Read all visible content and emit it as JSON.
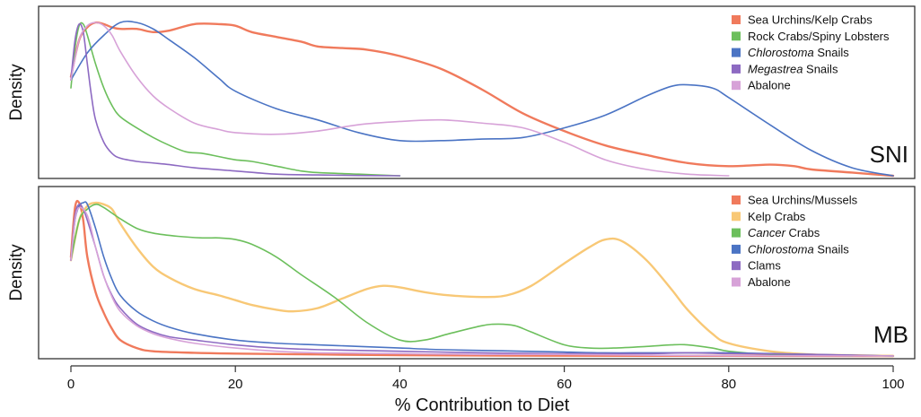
{
  "chart_data": {
    "type": "line",
    "xlabel": "% Contribution to Diet",
    "xlim": [
      0,
      100
    ],
    "xticks": [
      0,
      20,
      40,
      60,
      80,
      100
    ],
    "grid": false,
    "legend_position": "top-right",
    "panels": [
      {
        "tag": "SNI",
        "ylabel": "Density",
        "ylim": [
          0,
          1
        ],
        "series": [
          {
            "name": "Sea Urchins/Kelp Crabs",
            "color": "#f07a5c",
            "x": [
              0,
              1,
              2,
              3,
              4,
              5,
              6,
              8,
              10,
              12,
              15,
              18,
              20,
              22,
              25,
              28,
              30,
              33,
              36,
              40,
              45,
              50,
              55,
              60,
              65,
              70,
              75,
              80,
              85,
              88,
              90,
              95,
              100
            ],
            "y": [
              0.62,
              0.85,
              0.93,
              0.96,
              0.95,
              0.93,
              0.92,
              0.92,
              0.9,
              0.91,
              0.95,
              0.95,
              0.94,
              0.9,
              0.87,
              0.84,
              0.81,
              0.8,
              0.79,
              0.75,
              0.67,
              0.54,
              0.39,
              0.28,
              0.19,
              0.13,
              0.08,
              0.06,
              0.07,
              0.06,
              0.04,
              0.02,
              0.0
            ]
          },
          {
            "name": "Rock Crabs/Spiny Lobsters",
            "color": "#6cbf5c",
            "x": [
              0,
              0.5,
              1,
              1.5,
              2,
              3,
              4,
              5,
              6,
              8,
              10,
              12,
              14,
              16,
              18,
              20,
              22,
              25,
              28,
              30,
              35,
              40
            ],
            "y": [
              0.55,
              0.8,
              0.94,
              0.95,
              0.88,
              0.7,
              0.55,
              0.44,
              0.37,
              0.3,
              0.24,
              0.19,
              0.15,
              0.14,
              0.12,
              0.1,
              0.09,
              0.06,
              0.03,
              0.02,
              0.01,
              0.0
            ]
          },
          {
            "name": "Chlorostoma Snails",
            "color": "#4b74c4",
            "x": [
              0,
              2,
              4,
              6,
              8,
              10,
              12,
              15,
              18,
              20,
              25,
              30,
              35,
              40,
              45,
              50,
              55,
              60,
              65,
              70,
              73,
              75,
              78,
              80,
              85,
              90,
              95,
              100
            ],
            "y": [
              0.6,
              0.77,
              0.88,
              0.96,
              0.96,
              0.92,
              0.85,
              0.74,
              0.61,
              0.53,
              0.42,
              0.35,
              0.27,
              0.22,
              0.22,
              0.23,
              0.24,
              0.3,
              0.38,
              0.5,
              0.56,
              0.57,
              0.55,
              0.49,
              0.32,
              0.16,
              0.05,
              0.0
            ]
          },
          {
            "name": "Megastrea Snails",
            "color": "#8d6ac2",
            "x": [
              0,
              0.5,
              1,
              1.5,
              2,
              2.5,
              3,
              4,
              5,
              6,
              8,
              10,
              12,
              15,
              20,
              25,
              30,
              35,
              40
            ],
            "y": [
              0.6,
              0.85,
              0.95,
              0.9,
              0.7,
              0.5,
              0.35,
              0.21,
              0.14,
              0.11,
              0.09,
              0.08,
              0.07,
              0.05,
              0.03,
              0.01,
              0.005,
              0.002,
              0.0
            ]
          },
          {
            "name": "Abalone",
            "color": "#d7a2d8",
            "x": [
              0,
              1,
              2,
              3,
              4,
              5,
              6,
              8,
              10,
              12,
              15,
              18,
              20,
              25,
              30,
              35,
              40,
              45,
              50,
              55,
              60,
              65,
              70,
              75,
              80
            ],
            "y": [
              0.6,
              0.85,
              0.94,
              0.96,
              0.94,
              0.88,
              0.78,
              0.62,
              0.5,
              0.42,
              0.33,
              0.29,
              0.27,
              0.26,
              0.28,
              0.32,
              0.34,
              0.35,
              0.33,
              0.3,
              0.21,
              0.1,
              0.04,
              0.01,
              0.0
            ]
          }
        ]
      },
      {
        "tag": "MB",
        "ylabel": "Density",
        "ylim": [
          0,
          1
        ],
        "series": [
          {
            "name": "Sea Urchins/Mussels",
            "color": "#f07a5c",
            "x": [
              0,
              0.5,
              1,
              1.5,
              2,
              3,
              4,
              5,
              6,
              8,
              10,
              15,
              20,
              30,
              40,
              60,
              80,
              100
            ],
            "y": [
              0.62,
              0.93,
              0.96,
              0.85,
              0.62,
              0.4,
              0.27,
              0.17,
              0.1,
              0.05,
              0.03,
              0.02,
              0.015,
              0.01,
              0.005,
              0.002,
              0.001,
              0.0
            ]
          },
          {
            "name": "Kelp Crabs",
            "color": "#f8c876",
            "x": [
              0,
              1,
              2,
              3,
              4,
              5,
              6,
              8,
              10,
              12,
              15,
              18,
              20,
              22,
              25,
              27,
              30,
              33,
              36,
              38,
              40,
              43,
              46,
              50,
              53,
              56,
              60,
              63,
              65,
              67,
              70,
              73,
              75,
              78,
              80,
              85,
              90,
              95,
              100
            ],
            "y": [
              0.6,
              0.85,
              0.94,
              0.96,
              0.95,
              0.92,
              0.83,
              0.68,
              0.56,
              0.49,
              0.42,
              0.38,
              0.35,
              0.32,
              0.29,
              0.28,
              0.3,
              0.36,
              0.42,
              0.44,
              0.43,
              0.4,
              0.38,
              0.37,
              0.38,
              0.44,
              0.58,
              0.68,
              0.73,
              0.72,
              0.6,
              0.42,
              0.29,
              0.14,
              0.08,
              0.03,
              0.01,
              0.005,
              0.0
            ]
          },
          {
            "name": "Cancer Crabs",
            "color": "#6cbf5c",
            "x": [
              0,
              1,
              2,
              3,
              4,
              6,
              8,
              10,
              13,
              16,
              18,
              20,
              22,
              25,
              28,
              32,
              36,
              40,
              43,
              46,
              50,
              52,
              54,
              56,
              60,
              63,
              66,
              70,
              73,
              75,
              78,
              80,
              85,
              90,
              95
            ],
            "y": [
              0.6,
              0.85,
              0.92,
              0.95,
              0.93,
              0.86,
              0.8,
              0.77,
              0.75,
              0.74,
              0.74,
              0.73,
              0.7,
              0.62,
              0.51,
              0.37,
              0.21,
              0.1,
              0.1,
              0.14,
              0.19,
              0.2,
              0.19,
              0.15,
              0.07,
              0.05,
              0.05,
              0.06,
              0.07,
              0.07,
              0.05,
              0.03,
              0.01,
              0.005,
              0.0
            ]
          },
          {
            "name": "Chlorostoma Snails",
            "color": "#4b74c4",
            "x": [
              0,
              0.5,
              1,
              1.5,
              2,
              3,
              4,
              5,
              6,
              8,
              10,
              12,
              15,
              20,
              25,
              30,
              35,
              40,
              45,
              50,
              55,
              60,
              65,
              70,
              75,
              80,
              90,
              100
            ],
            "y": [
              0.6,
              0.85,
              0.94,
              0.96,
              0.95,
              0.8,
              0.62,
              0.48,
              0.38,
              0.28,
              0.22,
              0.18,
              0.14,
              0.1,
              0.08,
              0.07,
              0.06,
              0.05,
              0.04,
              0.035,
              0.03,
              0.025,
              0.02,
              0.02,
              0.02,
              0.02,
              0.01,
              0.0
            ]
          },
          {
            "name": "Clams",
            "color": "#8d6ac2",
            "x": [
              0,
              0.5,
              1,
              1.5,
              2,
              3,
              4,
              5,
              6,
              8,
              10,
              12,
              15,
              20,
              25,
              30,
              40,
              50,
              60,
              70,
              75,
              80,
              90,
              100
            ],
            "y": [
              0.6,
              0.88,
              0.95,
              0.92,
              0.85,
              0.68,
              0.5,
              0.38,
              0.3,
              0.2,
              0.15,
              0.12,
              0.1,
              0.07,
              0.05,
              0.04,
              0.03,
              0.02,
              0.015,
              0.015,
              0.02,
              0.015,
              0.01,
              0.0
            ]
          },
          {
            "name": "Abalone",
            "color": "#d7a2d8",
            "x": [
              0,
              0.5,
              1,
              2,
              3,
              4,
              5,
              6,
              8,
              10,
              12,
              15,
              20,
              25,
              30,
              40,
              50,
              60,
              70,
              80,
              100
            ],
            "y": [
              0.6,
              0.85,
              0.93,
              0.88,
              0.68,
              0.5,
              0.37,
              0.28,
              0.19,
              0.14,
              0.11,
              0.08,
              0.05,
              0.03,
              0.02,
              0.015,
              0.01,
              0.01,
              0.005,
              0.002,
              0.0
            ]
          }
        ]
      }
    ]
  }
}
